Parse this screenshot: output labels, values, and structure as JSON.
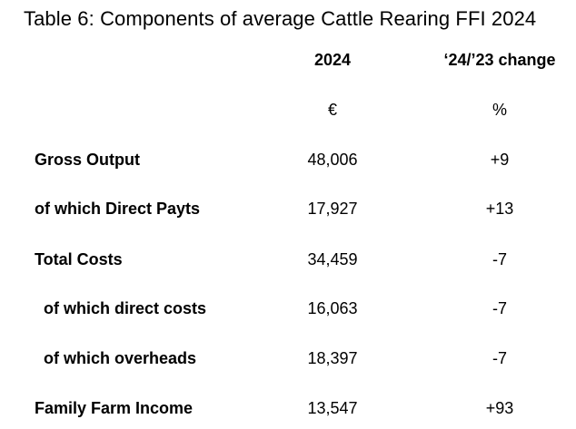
{
  "title": "Table 6: Components of average Cattle Rearing FFI 2024",
  "headers": {
    "col_2024": "2024",
    "col_change": "‘24/’23 change",
    "unit_2024": "€",
    "unit_change": "%"
  },
  "rows": [
    {
      "label": "Gross Output",
      "value": "48,006",
      "change": "+9"
    },
    {
      "label": "of which Direct Payts",
      "value": "17,927",
      "change": "+13"
    },
    {
      "label": "Total Costs",
      "value": "34,459",
      "change": "-7"
    },
    {
      "label": "of which direct costs",
      "value": "16,063",
      "change": "-7"
    },
    {
      "label": "of which overheads",
      "value": "18,397",
      "change": "-7"
    },
    {
      "label": "Family Farm Income",
      "value": "13,547",
      "change": "+93"
    }
  ]
}
